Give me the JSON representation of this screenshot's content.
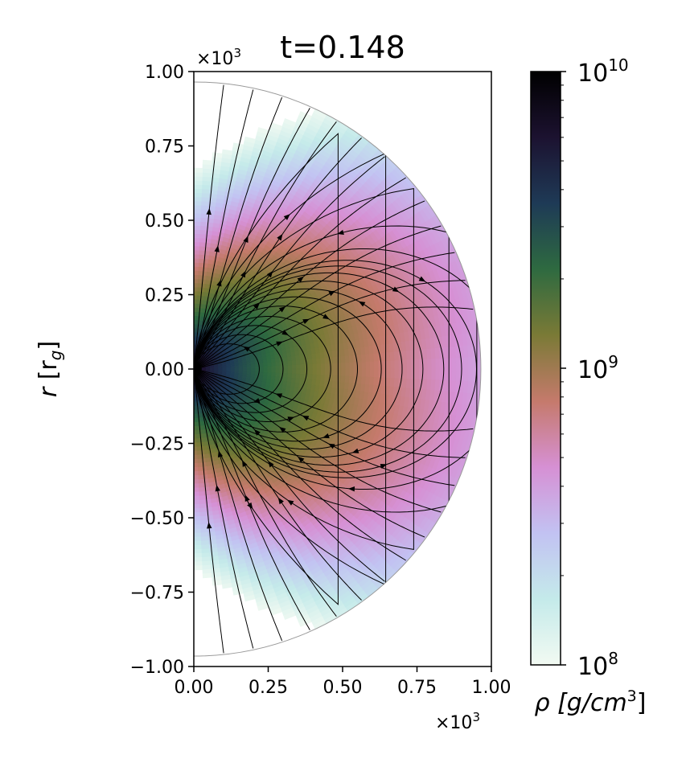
{
  "chart_data": {
    "type": "heatmap",
    "title": "t=0.148",
    "ylabel_base": "r",
    "ylabel_unit": "[r",
    "ylabel_unit_sub": "g",
    "ylabel_close": "]",
    "x_multiplier_base": "×10",
    "x_multiplier_exp": "3",
    "y_multiplier_base": "×10",
    "y_multiplier_exp": "3",
    "xlim": [
      0.0,
      1.0
    ],
    "ylim": [
      -1.0,
      1.0
    ],
    "x_ticks": [
      "0.00",
      "0.25",
      "0.50",
      "0.75",
      "1.00"
    ],
    "y_ticks": [
      "1.00",
      "0.75",
      "0.50",
      "0.25",
      "0.00",
      "−0.25",
      "−0.50",
      "−0.75",
      "−1.00"
    ],
    "x_tick_values": [
      0.0,
      0.25,
      0.5,
      0.75,
      1.0
    ],
    "y_tick_values": [
      1.0,
      0.75,
      0.5,
      0.25,
      0.0,
      -0.25,
      -0.5,
      -0.75,
      -1.0
    ],
    "domain_radius": 0.965,
    "field": "log-density, peaked at origin, concentrated near equator",
    "overlay": "magnetic field streamlines (dipole-like, closed loops near equator)",
    "colorbar": {
      "label_base": "ρ [g/cm",
      "label_exp": "3",
      "label_close": "]",
      "scale": "log",
      "range": [
        100000000.0,
        10000000000.0
      ],
      "ticks": [
        {
          "base": "10",
          "exp": "10",
          "value": 10
        },
        {
          "base": "10",
          "exp": "9",
          "value": 9
        },
        {
          "base": "10",
          "exp": "8",
          "value": 8
        }
      ],
      "colormap": "cubehelix_r",
      "colors": [
        "#f2faf2",
        "#c4eaea",
        "#c2c2f2",
        "#d690d4",
        "#c57a6c",
        "#7a7a36",
        "#2e6a40",
        "#1e3a56",
        "#1c1230",
        "#000000"
      ]
    }
  }
}
